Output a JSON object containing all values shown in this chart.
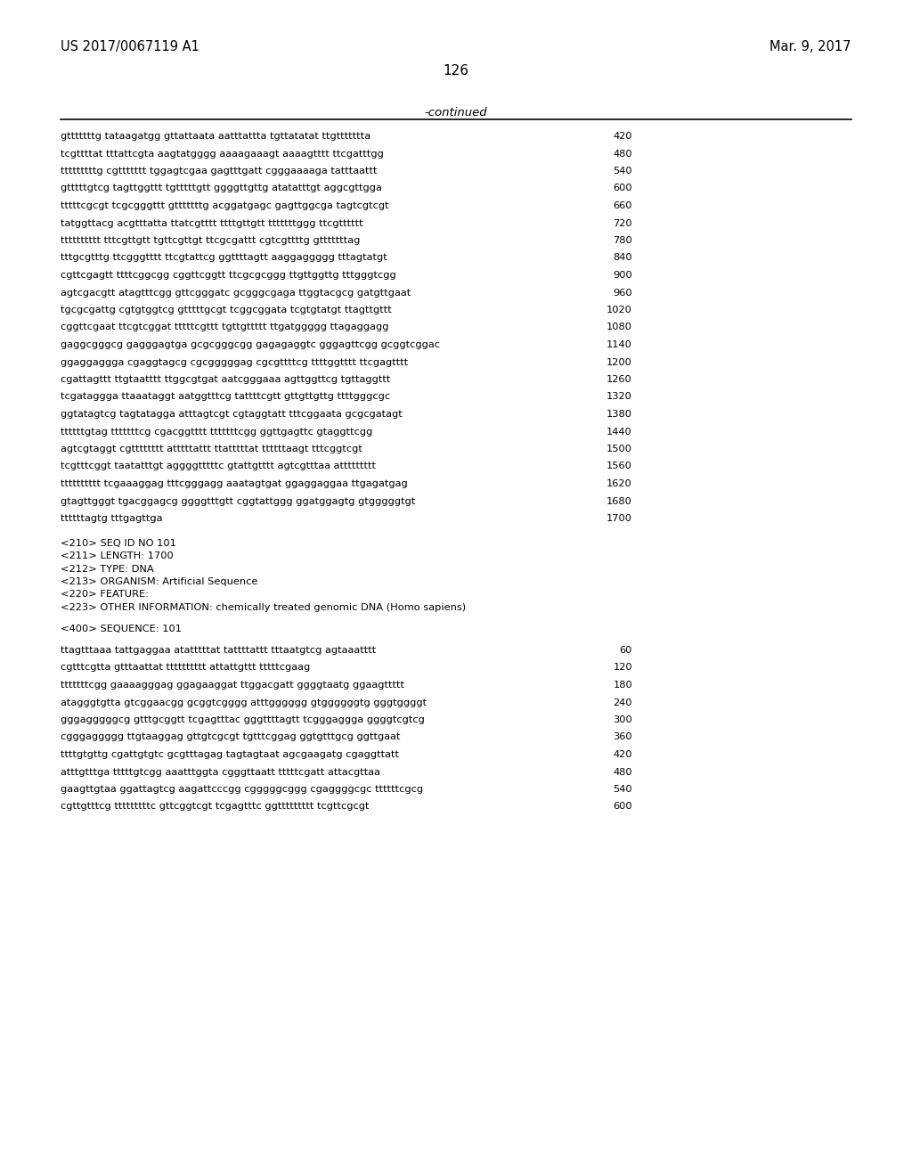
{
  "bg_color": "#ffffff",
  "header_left": "US 2017/0067119 A1",
  "header_right": "Mar. 9, 2017",
  "page_number": "126",
  "continued_label": "-continued",
  "sequence_lines": [
    [
      "gtttttttg tataagatgg gttattaata aatttattta tgttatatat ttgttttttta",
      "420"
    ],
    [
      "tcgttttat tttattcgta aagtatgggg aaaagaaagt aaaagtttt ttcgatttgg",
      "480"
    ],
    [
      "tttttttttg cgttttttt tggagtcgaa gagtttgatt cgggaaaaga tatttaattt",
      "540"
    ],
    [
      "gtttttgtcg tagttggttt tgtttttgtt ggggttgttg atatatttgt aggcgttgga",
      "600"
    ],
    [
      "tttttcgcgt tcgcgggttt gtttttttg acggatgagc gagttggcga tagtcgtcgt",
      "660"
    ],
    [
      "tatggttacg acgtttatta ttatcgtttt ttttgttgtt tttttttggg ttcgtttttt",
      "720"
    ],
    [
      "tttttttttt tttcgttgtt tgttcgttgt ttcgcgattt cgtcgttttg gtttttttag",
      "780"
    ],
    [
      "tttgcgtttg ttcgggtttt ttcgtattcg ggttttagtt aaggaggggg tttagtatgt",
      "840"
    ],
    [
      "cgttcgagtt ttttcggcgg cggttcggtt ttcgcgcggg ttgttggttg tttgggtcgg",
      "900"
    ],
    [
      "agtcgacgtt atagtttcgg gttcgggatc gcgggcgaga ttggtacgcg gatgttgaat",
      "960"
    ],
    [
      "tgcgcgattg cgtgtggtcg gtttttgcgt tcggcggata tcgtgtatgt ttagttgttt",
      "1020"
    ],
    [
      "cggttcgaat ttcgtcggat tttttcgttt tgttgttttt ttgatggggg ttagaggagg",
      "1080"
    ],
    [
      "gaggcgggcg gagggagtga gcgcgggcgg gagagaggtc gggagttcgg gcggtcggac",
      "1140"
    ],
    [
      "ggaggaggga cgaggtagcg cgcgggggag cgcgttttcg ttttggtttt ttcgagtttt",
      "1200"
    ],
    [
      "cgattagttt ttgtaatttt ttggcgtgat aatcgggaaa agttggttcg tgttaggttt",
      "1260"
    ],
    [
      "tcgataggga ttaaataggt aatggtttcg tattttcgtt gttgttgttg ttttgggcgc",
      "1320"
    ],
    [
      "ggtatagtcg tagtatagga atttagtcgt cgtaggtatt tttcggaata gcgcgatagt",
      "1380"
    ],
    [
      "ttttttgtag tttttttcg cgacggtttt tttttttcgg ggttgagttc gtaggttcgg",
      "1440"
    ],
    [
      "agtcgtaggt cgtttttttt atttttattt ttatttttat ttttttaagt tttcggtcgt",
      "1500"
    ],
    [
      "tcgtttcggt taatatttgt aggggtttttc gtattgtttt agtcgtttaa attttttttt",
      "1560"
    ],
    [
      "tttttttttt tcgaaaggag tttcgggagg aaatagtgat ggaggaggaa ttgagatgag",
      "1620"
    ],
    [
      "gtagttgggt tgacggagcg ggggtttgtt cggtattggg ggatggagtg gtgggggtgt",
      "1680"
    ],
    [
      "ttttttagtg tttgagttga",
      "1700"
    ]
  ],
  "metadata_lines": [
    "<210> SEQ ID NO 101",
    "<211> LENGTH: 1700",
    "<212> TYPE: DNA",
    "<213> ORGANISM: Artificial Sequence",
    "<220> FEATURE:",
    "<223> OTHER INFORMATION: chemically treated genomic DNA (Homo sapiens)"
  ],
  "sequence_label": "<400> SEQUENCE: 101",
  "sequence2_lines": [
    [
      "ttagtttaaa tattgaggaa atatttttat tattttattt tttaatgtcg agtaaatttt",
      "60"
    ],
    [
      "cgtttcgtta gtttaattat tttttttttt attattgttt tttttcgaag",
      "120"
    ],
    [
      "tttttttcgg gaaaagggag ggagaaggat ttggacgatt ggggtaatg ggaagttttt",
      "180"
    ],
    [
      "atagggtgtta gtcggaacgg gcggtcgggg atttgggggg gtggggggtg gggtggggt",
      "240"
    ],
    [
      "gggagggggcg gtttgcggtt tcgagtttac gggttttagtt tcgggaggga ggggtcgtcg",
      "300"
    ],
    [
      "cgggaggggg ttgtaaggag gttgtcgcgt tgtttcggag ggtgtttgcg ggttgaat",
      "360"
    ],
    [
      "ttttgtgttg cgattgtgtc gcgtttagag tagtagtaat agcgaagatg cgaggttatt",
      "420"
    ],
    [
      "atttgtttga tttttgtcgg aaatttggta cgggttaatt tttttcgatt attacgttaa",
      "480"
    ],
    [
      "gaagttgtaa ggattagtcg aagattcccgg cgggggcggg cgaggggcgc ttttttcgcg",
      "540"
    ],
    [
      "cgttgtttcg tttttttttc gttcggtcgt tcgagtttc ggttttttttt tcgttcgcgt",
      "600"
    ]
  ]
}
